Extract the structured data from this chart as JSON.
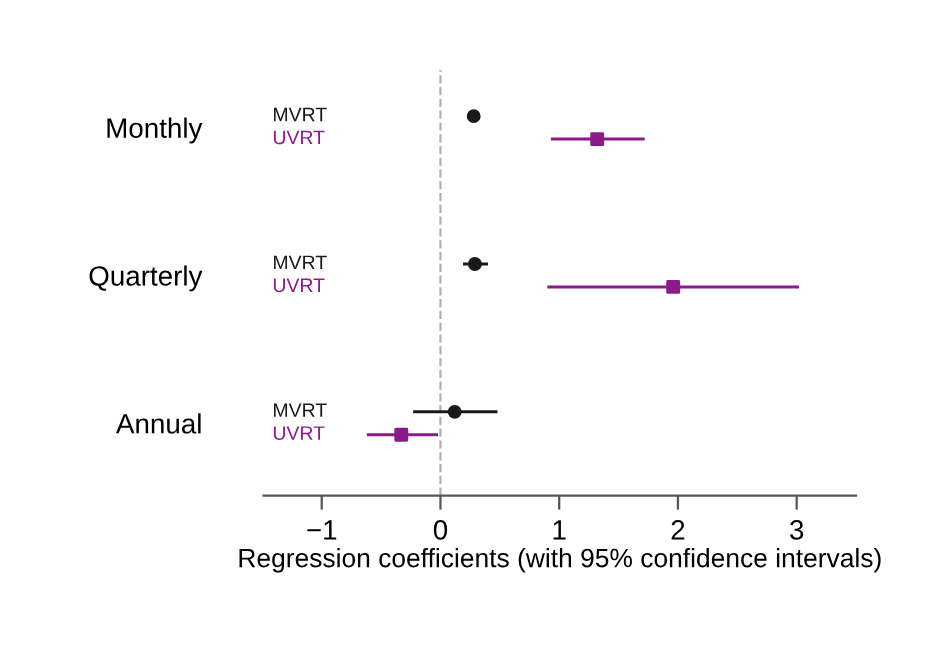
{
  "chart_data": {
    "type": "scatter",
    "orientation": "horizontal",
    "categories": [
      "Monthly",
      "Quarterly",
      "Annual"
    ],
    "xlabel": "Regression coefficients (with 95% confidence intervals)",
    "xlim": [
      -1.49,
      3.5
    ],
    "xticks": [
      {
        "value": -1,
        "label": "−1"
      },
      0,
      1,
      2,
      3
    ],
    "series": [
      {
        "name": "MVRT",
        "color": "#1a1a1a",
        "marker": "circle",
        "values": [
          0.28,
          0.29,
          0.12
        ],
        "errors": [
          [
            0.23,
            0.33
          ],
          [
            0.19,
            0.4
          ],
          [
            -0.23,
            0.48
          ]
        ]
      },
      {
        "name": "UVRT",
        "color": "#8b1a8b",
        "marker": "square",
        "values": [
          1.32,
          1.96,
          -0.33
        ],
        "errors": [
          [
            0.93,
            1.72
          ],
          [
            0.9,
            3.02
          ],
          [
            -0.62,
            -0.02
          ]
        ]
      }
    ],
    "ref_lines": [
      {
        "axis": "x",
        "value": 0,
        "color": "#b0b0b0",
        "line_style": "dashed"
      }
    ],
    "grid": false,
    "legend": false
  }
}
